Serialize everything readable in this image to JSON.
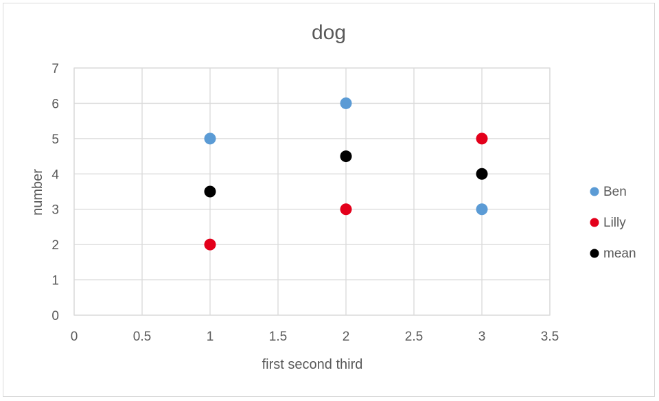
{
  "chart_data": {
    "type": "scatter",
    "title": "dog",
    "xlabel": "first second third",
    "ylabel": "number",
    "xlim": [
      0,
      3.5
    ],
    "ylim": [
      0,
      7
    ],
    "x_ticks": [
      "0",
      "0.5",
      "1",
      "1.5",
      "2",
      "2.5",
      "3",
      "3.5"
    ],
    "y_ticks": [
      "0",
      "1",
      "2",
      "3",
      "4",
      "5",
      "6",
      "7"
    ],
    "grid": true,
    "legend_position": "right",
    "series": [
      {
        "name": "Ben",
        "color": "#5b9bd5",
        "points": [
          [
            1,
            5
          ],
          [
            2,
            6
          ],
          [
            3,
            3
          ]
        ]
      },
      {
        "name": "Lilly",
        "color": "#e3001b",
        "points": [
          [
            1,
            2
          ],
          [
            2,
            3
          ],
          [
            3,
            5
          ]
        ]
      },
      {
        "name": "mean",
        "color": "#000000",
        "points": [
          [
            1,
            3.5
          ],
          [
            2,
            4.5
          ],
          [
            3,
            4
          ]
        ]
      }
    ]
  }
}
